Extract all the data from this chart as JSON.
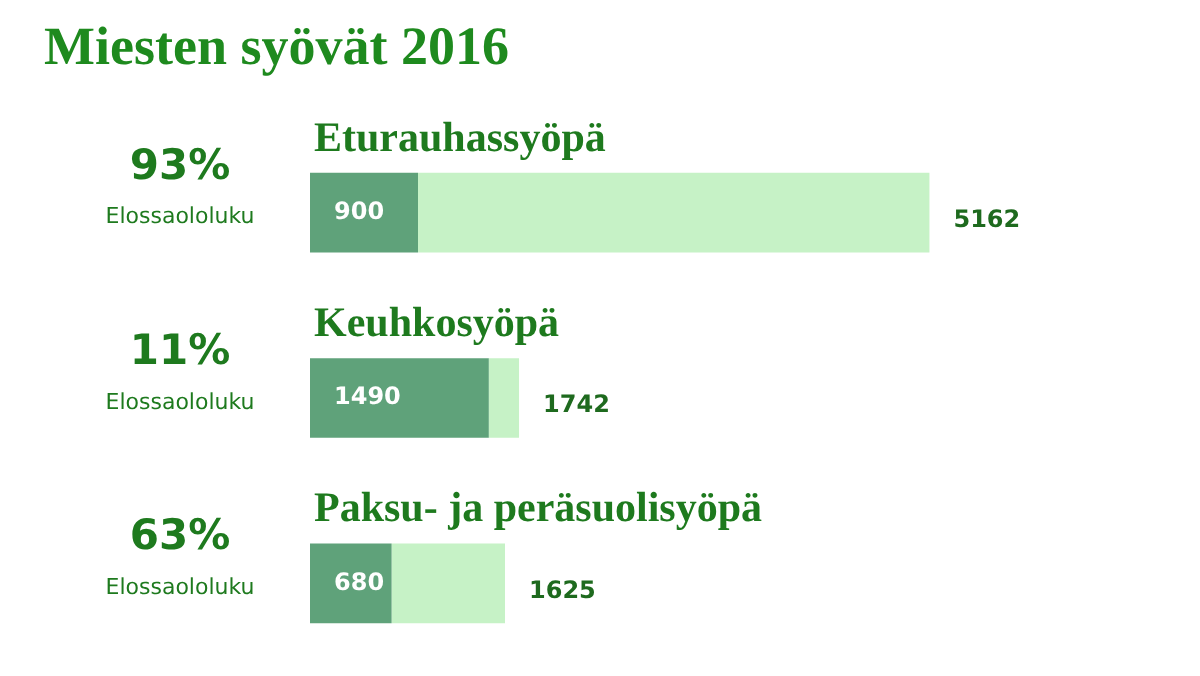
{
  "chart_data": {
    "type": "bar",
    "orientation": "horizontal",
    "stacked": true,
    "title": "Miesten syövät 2016",
    "categories": [
      "Eturauhassyöpä",
      "Keuhkosyöpä",
      "Paksu- ja peräsuolisyöpä"
    ],
    "series": [
      {
        "color": "#5fa27a",
        "values": [
          900,
          1490,
          680
        ],
        "value_labels": [
          "900",
          "1490",
          "680"
        ]
      },
      {
        "color": "#c6f2c6",
        "values": [
          4262,
          252,
          945
        ]
      }
    ],
    "totals": [
      "5162",
      "1742",
      "1625"
    ],
    "annotations": [
      "93%",
      "Elossaololuku",
      "11%",
      "Elossaololuku",
      "63%",
      "Elossaololuku"
    ],
    "legend": false
  }
}
